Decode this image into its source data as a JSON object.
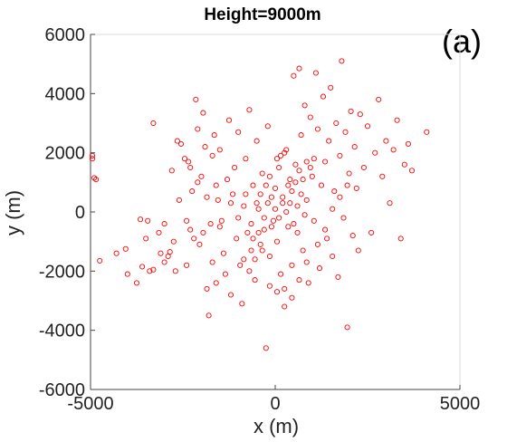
{
  "chart_data": {
    "type": "scatter",
    "title": "Height=9000m",
    "panel_label": "(a)",
    "xlabel": "x (m)",
    "ylabel": "y (m)",
    "xlim": [
      -5000,
      5000
    ],
    "ylim": [
      -6000,
      6000
    ],
    "xticks": [
      -5000,
      0,
      5000
    ],
    "yticks": [
      -6000,
      -4000,
      -2000,
      0,
      2000,
      4000,
      6000
    ],
    "grid": false,
    "marker": "open-circle",
    "marker_color": "#ff0000",
    "series": [
      {
        "points": [
          [
            -4950,
            1900
          ],
          [
            -4950,
            1800
          ],
          [
            -4900,
            1150
          ],
          [
            -4850,
            1100
          ],
          [
            -4750,
            -1650
          ],
          [
            -4300,
            -1400
          ],
          [
            -4050,
            -1250
          ],
          [
            -4000,
            -2100
          ],
          [
            -3750,
            -2400
          ],
          [
            -3650,
            -250
          ],
          [
            -3600,
            -1850
          ],
          [
            -3450,
            -300
          ],
          [
            -3400,
            -2000
          ],
          [
            -3300,
            -1950
          ],
          [
            -3300,
            3000
          ],
          [
            -3150,
            -700
          ],
          [
            -3100,
            -1400
          ],
          [
            -3000,
            -1700
          ],
          [
            -2900,
            -1500
          ],
          [
            -2850,
            -1350
          ],
          [
            -2750,
            -1000
          ],
          [
            -2700,
            -2000
          ],
          [
            -2650,
            2400
          ],
          [
            -2550,
            2300
          ],
          [
            -2450,
            1800
          ],
          [
            -2400,
            -1800
          ],
          [
            -2350,
            1700
          ],
          [
            -2300,
            -600
          ],
          [
            -2250,
            700
          ],
          [
            -2200,
            -900
          ],
          [
            -2150,
            3800
          ],
          [
            -2100,
            2800
          ],
          [
            -2050,
            -1100
          ],
          [
            -2000,
            1200
          ],
          [
            -1950,
            3350
          ],
          [
            -1900,
            2200
          ],
          [
            -1850,
            -2600
          ],
          [
            -1800,
            -3500
          ],
          [
            -1750,
            -400
          ],
          [
            -1700,
            1900
          ],
          [
            -1650,
            2600
          ],
          [
            -1600,
            900
          ],
          [
            -1550,
            400
          ],
          [
            -1500,
            2100
          ],
          [
            -1450,
            -300
          ],
          [
            -1400,
            -1400
          ],
          [
            -1350,
            -2100
          ],
          [
            -1300,
            1100
          ],
          [
            -1250,
            3100
          ],
          [
            -1200,
            -2800
          ],
          [
            -1150,
            600
          ],
          [
            -1100,
            1500
          ],
          [
            -1050,
            -900
          ],
          [
            -1000,
            2700
          ],
          [
            -950,
            -1800
          ],
          [
            -900,
            -3100
          ],
          [
            -850,
            200
          ],
          [
            -800,
            1800
          ],
          [
            -750,
            -700
          ],
          [
            -700,
            3450
          ],
          [
            -650,
            -1300
          ],
          [
            -600,
            900
          ],
          [
            -550,
            -2300
          ],
          [
            -500,
            2400
          ],
          [
            -450,
            100
          ],
          [
            -400,
            -1100
          ],
          [
            -350,
            1300
          ],
          [
            -300,
            -600
          ],
          [
            -250,
            -4600
          ],
          [
            -200,
            2900
          ],
          [
            -150,
            -1500
          ],
          [
            -100,
            500
          ],
          [
            -50,
            -300
          ],
          [
            0,
            800
          ],
          [
            50,
            -1000
          ],
          [
            100,
            1500
          ],
          [
            150,
            -2100
          ],
          [
            200,
            300
          ],
          [
            250,
            -3200
          ],
          [
            300,
            2100
          ],
          [
            350,
            -500
          ],
          [
            400,
            1100
          ],
          [
            450,
            -1800
          ],
          [
            500,
            4600
          ],
          [
            550,
            1600
          ],
          [
            600,
            -700
          ],
          [
            650,
            4850
          ],
          [
            700,
            2600
          ],
          [
            750,
            -1300
          ],
          [
            800,
            3600
          ],
          [
            850,
            400
          ],
          [
            900,
            -2400
          ],
          [
            950,
            3200
          ],
          [
            1000,
            1200
          ],
          [
            1050,
            -300
          ],
          [
            1100,
            4700
          ],
          [
            1150,
            2800
          ],
          [
            1200,
            -1900
          ],
          [
            1250,
            900
          ],
          [
            1300,
            3900
          ],
          [
            1350,
            1700
          ],
          [
            1400,
            -900
          ],
          [
            1450,
            2400
          ],
          [
            1500,
            4200
          ],
          [
            1550,
            -1500
          ],
          [
            1600,
            700
          ],
          [
            1650,
            3000
          ],
          [
            1700,
            -2200
          ],
          [
            1750,
            1900
          ],
          [
            1800,
            5100
          ],
          [
            1850,
            -200
          ],
          [
            1900,
            2700
          ],
          [
            1950,
            -3900
          ],
          [
            2000,
            1300
          ],
          [
            2050,
            3400
          ],
          [
            2100,
            -800
          ],
          [
            2150,
            2200
          ],
          [
            2200,
            800
          ],
          [
            2250,
            -1300
          ],
          [
            2300,
            3300
          ],
          [
            2400,
            1500
          ],
          [
            2500,
            2900
          ],
          [
            2600,
            -700
          ],
          [
            2700,
            2000
          ],
          [
            2800,
            3800
          ],
          [
            2900,
            1200
          ],
          [
            3000,
            2400
          ],
          [
            3100,
            300
          ],
          [
            3200,
            2100
          ],
          [
            3300,
            3100
          ],
          [
            3400,
            -900
          ],
          [
            3500,
            1600
          ],
          [
            3600,
            2300
          ],
          [
            3700,
            1400
          ],
          [
            4100,
            2700
          ],
          [
            -1950,
            -700
          ],
          [
            -1500,
            -500
          ],
          [
            -1200,
            300
          ],
          [
            -1000,
            -200
          ],
          [
            -800,
            600
          ],
          [
            -650,
            -400
          ],
          [
            -500,
            300
          ],
          [
            -400,
            600
          ],
          [
            -300,
            -200
          ],
          [
            -200,
            300
          ],
          [
            -100,
            -500
          ],
          [
            0,
            100
          ],
          [
            100,
            -200
          ],
          [
            200,
            500
          ],
          [
            300,
            0
          ],
          [
            400,
            300
          ],
          [
            500,
            -400
          ],
          [
            600,
            200
          ],
          [
            700,
            600
          ],
          [
            800,
            -100
          ],
          [
            -600,
            -900
          ],
          [
            -450,
            -700
          ],
          [
            -250,
            900
          ],
          [
            -150,
            1200
          ],
          [
            50,
            1800
          ],
          [
            150,
            1900
          ],
          [
            250,
            2000
          ],
          [
            350,
            900
          ],
          [
            450,
            700
          ],
          [
            550,
            1000
          ],
          [
            650,
            1400
          ],
          [
            750,
            1100
          ],
          [
            850,
            1700
          ],
          [
            950,
            1500
          ],
          [
            1050,
            1800
          ],
          [
            -850,
            -1600
          ],
          [
            -700,
            -2000
          ],
          [
            -550,
            -1600
          ],
          [
            -350,
            -1300
          ],
          [
            -150,
            -2500
          ],
          [
            50,
            -2700
          ],
          [
            250,
            -2600
          ],
          [
            450,
            -2900
          ],
          [
            650,
            -2300
          ],
          [
            850,
            -1700
          ],
          [
            1150,
            -1100
          ],
          [
            1350,
            -600
          ],
          [
            1550,
            100
          ],
          [
            1750,
            500
          ],
          [
            1950,
            900
          ],
          [
            -2600,
            400
          ],
          [
            -2400,
            -300
          ],
          [
            -2100,
            1000
          ],
          [
            -1850,
            500
          ],
          [
            -1700,
            -1700
          ],
          [
            -3000,
            -400
          ],
          [
            -3500,
            -900
          ],
          [
            -2800,
            1400
          ],
          [
            -2300,
            1500
          ],
          [
            -1600,
            -2400
          ]
        ]
      }
    ]
  }
}
